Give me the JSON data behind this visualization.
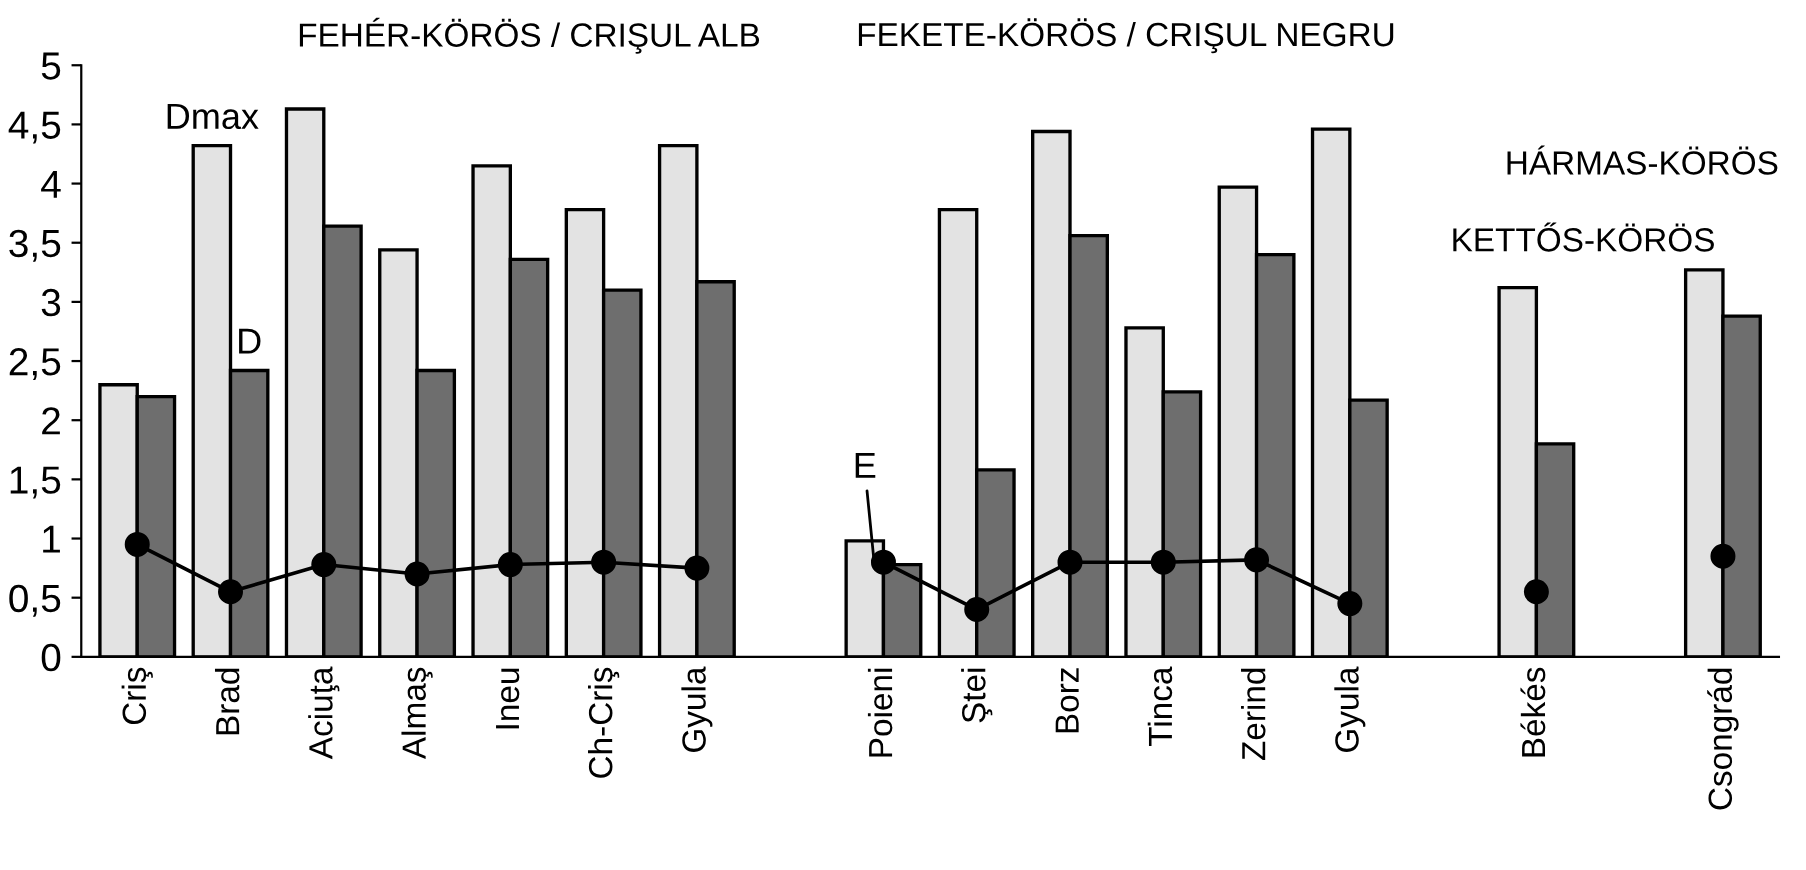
{
  "chart_data": {
    "type": "bar",
    "categories": [
      "Criş",
      "Brad",
      "Aciuţa",
      "Almaş",
      "Ineu",
      "Ch-Criş",
      "Gyula",
      null,
      "Poieni",
      "Ştei",
      "Borz",
      "Tinca",
      "Zerind",
      "Gyula",
      null,
      "Békés",
      null,
      "Csongrád"
    ],
    "series": [
      {
        "name": "Dmax",
        "color": "#e3e3e3",
        "values": [
          2.3,
          4.32,
          4.63,
          3.44,
          4.15,
          3.78,
          4.32,
          null,
          0.98,
          3.78,
          4.44,
          2.78,
          3.97,
          4.46,
          null,
          3.12,
          null,
          3.27
        ]
      },
      {
        "name": "D",
        "color": "#6e6e6e",
        "values": [
          2.2,
          2.42,
          3.64,
          2.42,
          3.36,
          3.1,
          3.17,
          null,
          0.78,
          1.58,
          3.56,
          2.24,
          3.4,
          2.17,
          null,
          1.8,
          null,
          2.88
        ]
      },
      {
        "name": "E",
        "type": "line",
        "color": "#000000",
        "values": [
          0.95,
          0.55,
          0.78,
          0.7,
          0.78,
          0.8,
          0.75,
          null,
          0.8,
          0.4,
          0.8,
          0.8,
          0.82,
          0.45,
          null,
          0.55,
          null,
          0.85
        ]
      }
    ],
    "ylim": [
      0,
      5
    ],
    "yticks": [
      0,
      {
        "value": 0.5,
        "label": "0,5"
      },
      1,
      {
        "value": 1.5,
        "label": "1,5"
      },
      2,
      {
        "value": 2.5,
        "label": "2,5"
      },
      3,
      {
        "value": 3.5,
        "label": "3,5"
      },
      4,
      {
        "value": 4.5,
        "label": "4,5"
      },
      5
    ],
    "annotations": [
      "FEHÉR-KÖRÖS / CRIŞUL ALB",
      "FEKETE-KÖRÖS / CRIŞUL NEGRU",
      "HÁRMAS-KÖRÖS",
      "KETTŐS-KÖRÖS"
    ],
    "marker": "circle",
    "line_style": "solid",
    "grid": false,
    "legend": false
  }
}
